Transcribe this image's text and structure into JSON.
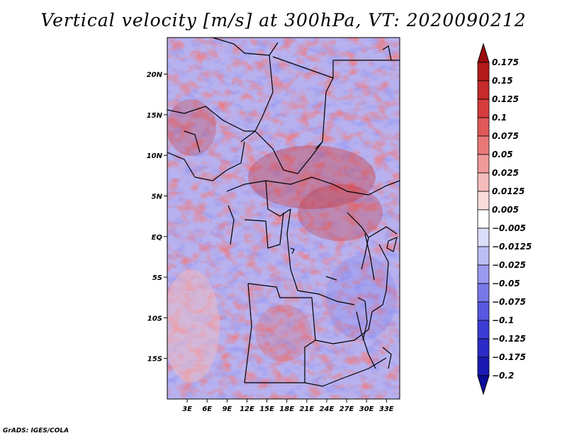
{
  "title": "Vertical velocity [m/s] at 300hPa, VT: 2020090212",
  "credit": "GrADS: IGES/COLA",
  "map": {
    "lat_labels": [
      "20N",
      "15N",
      "10N",
      "5N",
      "EQ",
      "5S",
      "10S",
      "15S"
    ],
    "lat_values": [
      20,
      15,
      10,
      5,
      0,
      -5,
      -10,
      -15
    ],
    "lon_labels": [
      "3E",
      "6E",
      "9E",
      "12E",
      "15E",
      "18E",
      "21E",
      "24E",
      "27E",
      "30E",
      "33E"
    ],
    "lon_values": [
      3,
      6,
      9,
      12,
      15,
      18,
      21,
      24,
      27,
      30,
      33
    ],
    "lon_range": [
      0,
      35
    ],
    "lat_range": [
      -20,
      24.5
    ]
  },
  "colorbar": {
    "labels": [
      "0.175",
      "0.15",
      "0.125",
      "0.1",
      "0.075",
      "0.05",
      "0.025",
      "0.0125",
      "0.005",
      "−0.005",
      "−0.0125",
      "−0.025",
      "−0.05",
      "−0.075",
      "−0.1",
      "−0.125",
      "−0.175",
      "−0.2"
    ],
    "colors": [
      "#9c0d0d",
      "#b31a1a",
      "#c62a2a",
      "#d63c3c",
      "#e05858",
      "#e87878",
      "#f09a9a",
      "#f6bcbc",
      "#fbdcdc",
      "#ffffff",
      "#dcdcfb",
      "#bcbcf6",
      "#9a9af0",
      "#7878e8",
      "#5858e0",
      "#3c3cd6",
      "#2a2ac6",
      "#1a1ab3",
      "#0d0d9c"
    ]
  }
}
